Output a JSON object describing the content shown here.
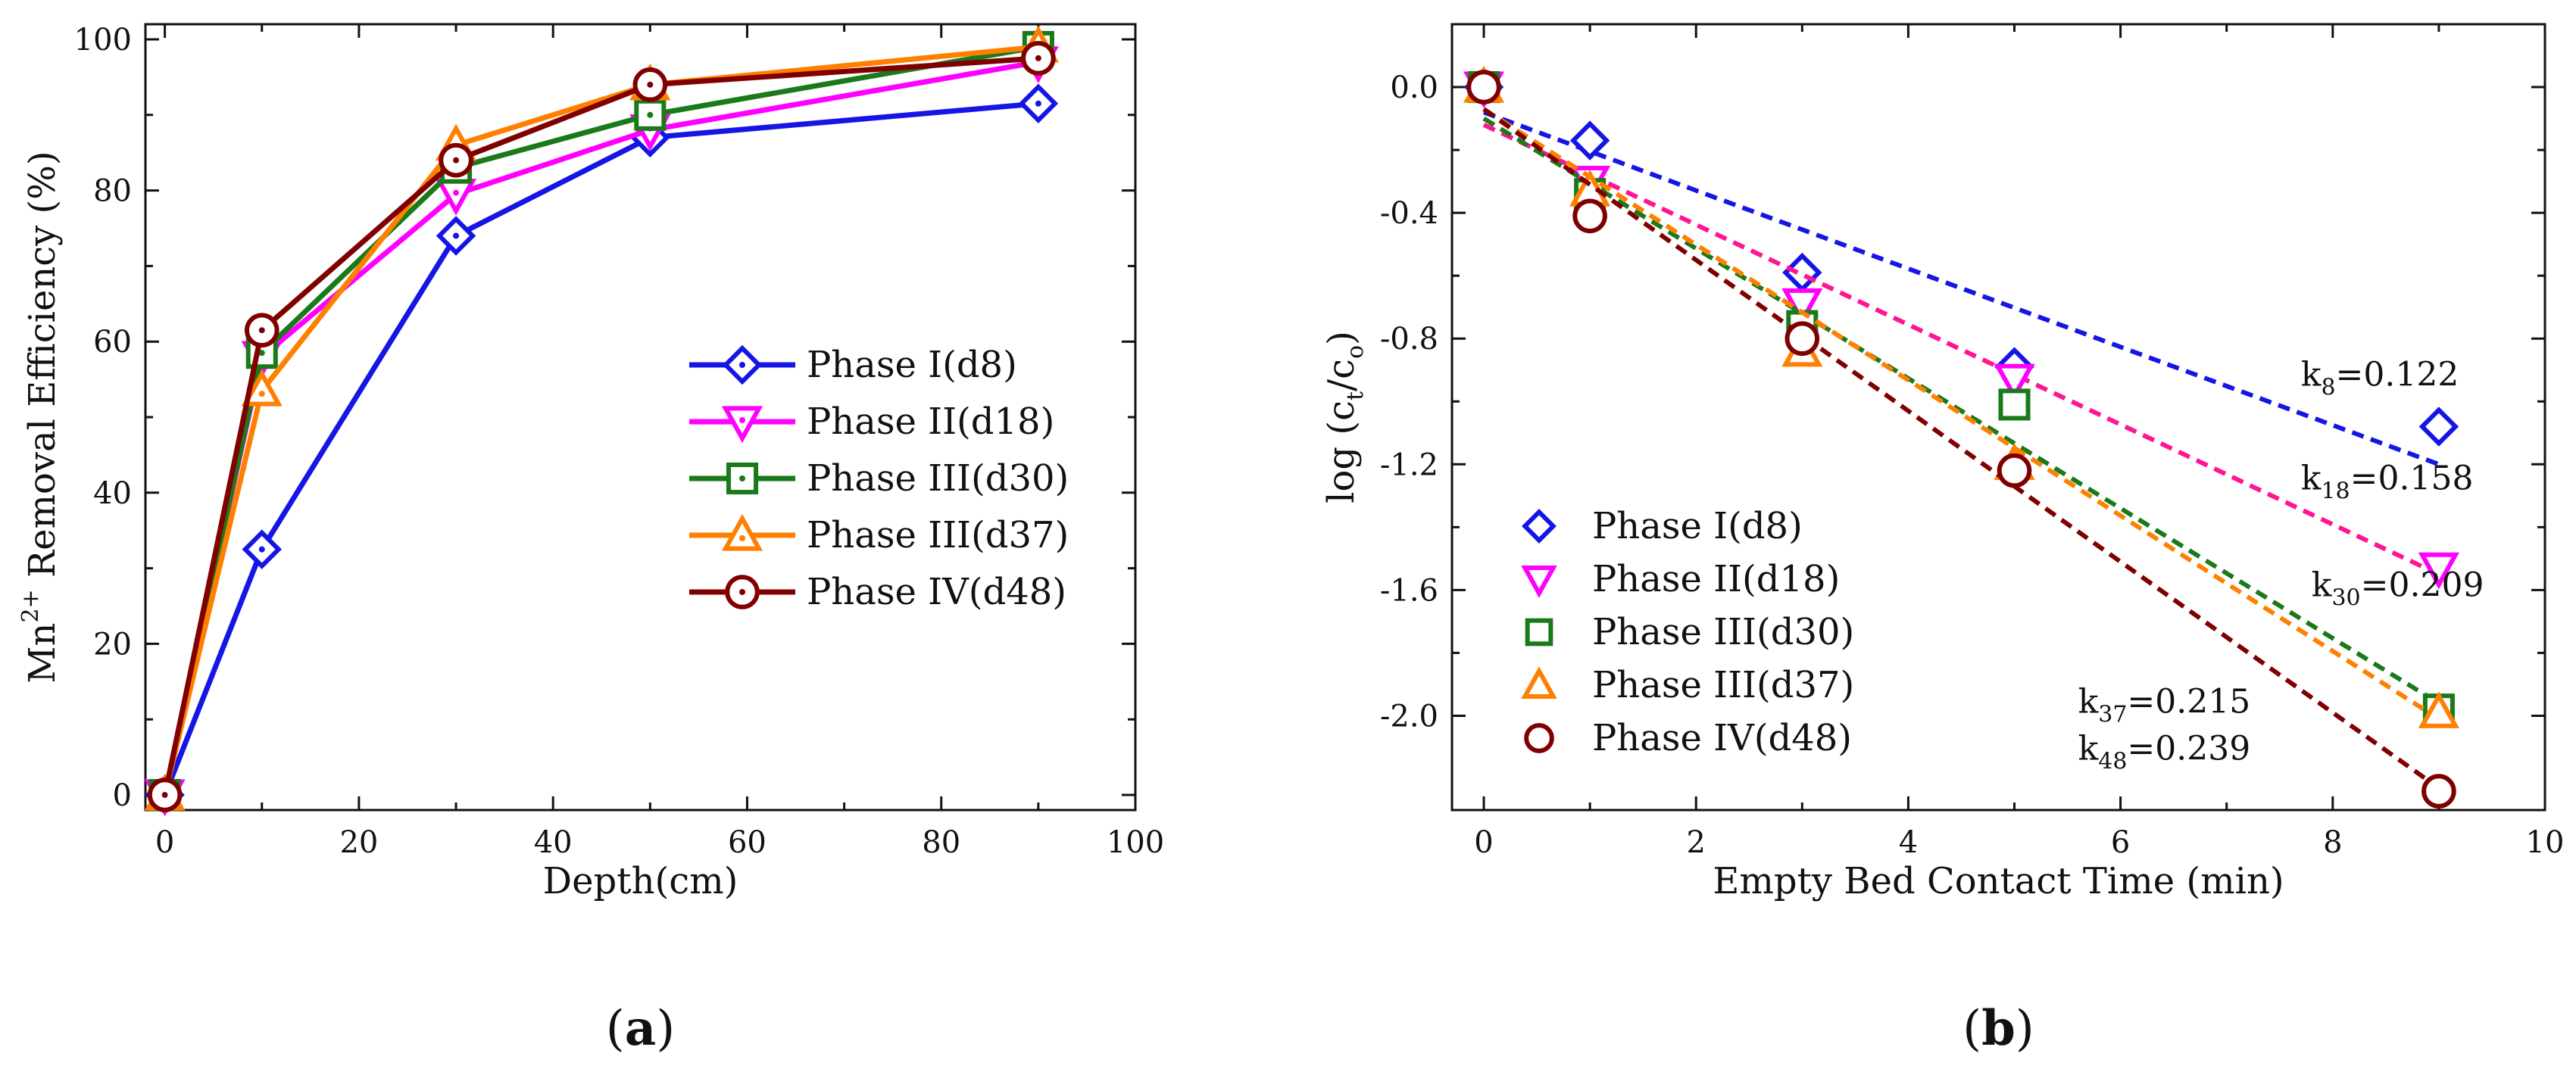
{
  "chart_data": [
    {
      "panel": "a",
      "type": "line",
      "panel_label": "a",
      "xlabel": "Depth(cm)",
      "ylabel": {
        "prefix": "Mn",
        "superscript": "2+",
        "rest": " Removal  Efficiency (%)"
      },
      "xlim": [
        -2,
        100
      ],
      "ylim": [
        -2,
        102
      ],
      "xticks": [
        0,
        20,
        40,
        60,
        80,
        100
      ],
      "yticks": [
        0,
        20,
        40,
        60,
        80,
        100
      ],
      "legend_position": "center-right",
      "x": [
        0,
        10,
        30,
        50,
        90
      ],
      "series": [
        {
          "name": "Phase I(d8)",
          "color": "#1515e6",
          "marker": "diamond-dot",
          "values": [
            0,
            32.5,
            74,
            87,
            91.5
          ]
        },
        {
          "name": "Phase II(d18)",
          "color": "#ff00ff",
          "marker": "triangle-down-dot",
          "values": [
            0,
            58,
            79.5,
            88,
            97
          ]
        },
        {
          "name": "Phase III(d30)",
          "color": "#1a7a1a",
          "marker": "square-dot",
          "values": [
            0,
            58.5,
            83,
            90,
            99
          ]
        },
        {
          "name": "Phase III(d37)",
          "color": "#ff8000",
          "marker": "triangle-up-dot",
          "values": [
            0,
            53.5,
            86,
            94,
            99
          ]
        },
        {
          "name": "Phase IV(d48)",
          "color": "#800000",
          "marker": "circle-dot",
          "values": [
            0,
            61.5,
            84,
            94,
            97.5
          ]
        }
      ]
    },
    {
      "panel": "b",
      "type": "scatter",
      "panel_label": "b",
      "xlabel": "Empty Bed Contact Time (min)",
      "ylabel": {
        "prefix": "log (c",
        "sub1": "t",
        "mid": "/c",
        "sub2": "o",
        "suffix": ")"
      },
      "xlim": [
        -0.3,
        10
      ],
      "ylim": [
        -2.3,
        0.2
      ],
      "xticks": [
        0,
        2,
        4,
        6,
        8,
        10
      ],
      "yticks": [
        0.0,
        -0.4,
        -0.8,
        -1.2,
        -1.6,
        -2.0
      ],
      "ytick_labels": [
        "0.0",
        "-0.4",
        "-0.8",
        "-1.2",
        "-1.6",
        "-2.0"
      ],
      "legend_position": "bottom-left",
      "x": [
        0,
        1,
        3,
        5,
        9
      ],
      "series": [
        {
          "name": "Phase I(d8)",
          "color": "#1515e6",
          "marker": "diamond",
          "values": [
            0,
            -0.17,
            -0.59,
            -0.89,
            -1.08
          ],
          "fit": [
            -0.08,
            -1.2
          ]
        },
        {
          "name": "Phase II(d18)",
          "color": "#ff00ff",
          "marker": "triangle-down",
          "values": [
            0,
            -0.3,
            -0.69,
            -0.93,
            -1.53
          ],
          "fit": [
            -0.12,
            -1.55
          ],
          "fit_color": "#ff1493"
        },
        {
          "name": "Phase III(d30)",
          "color": "#1a7a1a",
          "marker": "square",
          "values": [
            0,
            -0.34,
            -0.76,
            -1.01,
            -1.98
          ],
          "fit": [
            -0.1,
            -1.96
          ]
        },
        {
          "name": "Phase III(d37)",
          "color": "#ff8000",
          "marker": "triangle-up",
          "values": [
            0,
            -0.33,
            -0.84,
            -1.2,
            -1.99
          ],
          "fit": [
            -0.07,
            -2.01
          ]
        },
        {
          "name": "Phase IV(d48)",
          "color": "#800000",
          "marker": "circle",
          "values": [
            0,
            -0.41,
            -0.8,
            -1.22,
            -2.24
          ],
          "fit": [
            -0.07,
            -2.23
          ]
        }
      ],
      "annotations": [
        {
          "sym": "k",
          "sub": "8",
          "value": "=0.122",
          "pos": [
            7.7,
            -0.95
          ]
        },
        {
          "sym": "k",
          "sub": "18",
          "value": "=0.158",
          "pos": [
            7.7,
            -1.28
          ]
        },
        {
          "sym": "k",
          "sub": "30",
          "value": "=0.209",
          "pos": [
            7.8,
            -1.62
          ]
        },
        {
          "sym": "k",
          "sub": "37",
          "value": "=0.215",
          "pos": [
            5.6,
            -1.99
          ]
        },
        {
          "sym": "k",
          "sub": "48",
          "value": "=0.239",
          "pos": [
            5.6,
            -2.14
          ]
        }
      ]
    }
  ]
}
